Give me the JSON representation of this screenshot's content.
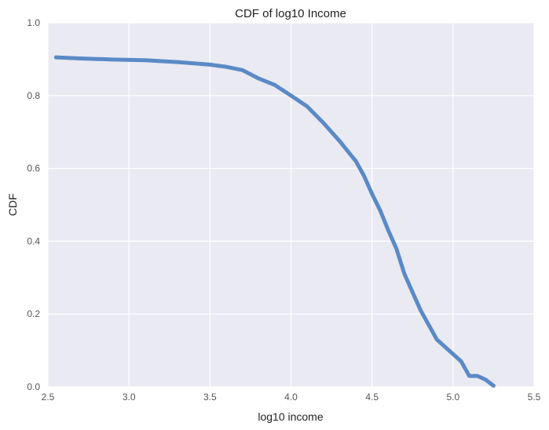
{
  "chart_data": {
    "type": "line",
    "title": "CDF of log10 Income",
    "xlabel": "log10 income",
    "ylabel": "CDF",
    "xlim": [
      2.5,
      5.5
    ],
    "ylim": [
      0.0,
      1.0
    ],
    "xticks": [
      "2.5",
      "3.0",
      "3.5",
      "4.0",
      "4.5",
      "5.0",
      "5.5"
    ],
    "yticks": [
      "0.0",
      "0.2",
      "0.4",
      "0.6",
      "0.8",
      "1.0"
    ],
    "grid": true,
    "colors": {
      "background": "#EAEAF2",
      "grid": "#FFFFFF",
      "line": "#5A8AC6"
    },
    "series": [
      {
        "x": [
          2.55,
          2.7,
          2.9,
          3.1,
          3.3,
          3.5,
          3.6,
          3.7,
          3.8,
          3.9,
          4.0,
          4.05,
          4.1,
          4.2,
          4.3,
          4.4,
          4.45,
          4.5,
          4.55,
          4.6,
          4.65,
          4.7,
          4.75,
          4.8,
          4.85,
          4.9,
          5.0,
          5.05,
          5.1,
          5.15,
          5.2,
          5.25
        ],
        "y": [
          0.905,
          0.902,
          0.899,
          0.897,
          0.892,
          0.885,
          0.879,
          0.87,
          0.847,
          0.829,
          0.8,
          0.785,
          0.77,
          0.725,
          0.675,
          0.62,
          0.58,
          0.53,
          0.485,
          0.43,
          0.38,
          0.31,
          0.26,
          0.21,
          0.17,
          0.13,
          0.09,
          0.07,
          0.03,
          0.03,
          0.02,
          0.003
        ]
      }
    ]
  }
}
